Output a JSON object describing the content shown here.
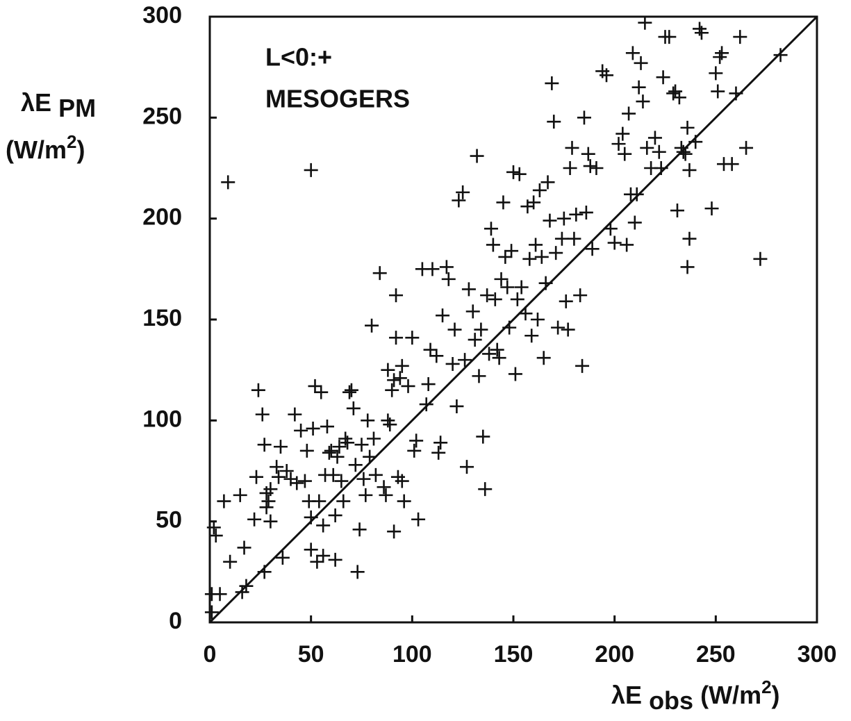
{
  "chart_data": {
    "type": "scatter",
    "annotation": [
      "L<0:+",
      "MESOGERS"
    ],
    "y_label": {
      "symbol": "λE",
      "subscript": "PM",
      "unit": "(W/m",
      "unit_power": "2",
      "unit_close": ")"
    },
    "x_label": {
      "symbol": "λE",
      "subscript": "obs",
      "unit": "(W/m",
      "unit_power": "2",
      "unit_close": ")"
    },
    "xlim": [
      0,
      300
    ],
    "ylim": [
      0,
      300
    ],
    "xticks": [
      0,
      50,
      100,
      150,
      200,
      250,
      300
    ],
    "yticks": [
      0,
      50,
      100,
      150,
      200,
      250,
      300
    ],
    "marker": "+",
    "color": "#111111",
    "x": [
      2,
      3,
      1,
      1,
      5,
      7,
      10,
      9,
      50,
      17,
      16,
      18,
      22,
      15,
      23,
      24,
      26,
      27,
      28,
      28,
      29,
      30,
      30,
      27,
      33,
      34,
      35,
      36,
      38,
      40,
      42,
      43,
      45,
      47,
      48,
      49,
      50,
      50,
      51,
      52,
      53,
      54,
      55,
      56,
      56,
      57,
      58,
      59,
      60,
      61,
      62,
      62,
      63,
      64,
      65,
      66,
      67,
      68,
      69,
      70,
      71,
      72,
      73,
      74,
      75,
      76,
      77,
      78,
      79,
      80,
      81,
      82,
      84,
      86,
      87,
      88,
      88,
      89,
      90,
      91,
      91,
      92,
      92,
      93,
      94,
      95,
      95,
      96,
      98,
      100,
      101,
      102,
      103,
      105,
      107,
      108,
      109,
      110,
      112,
      113,
      114,
      115,
      117,
      118,
      120,
      121,
      122,
      123,
      125,
      126,
      127,
      128,
      130,
      131,
      132,
      133,
      134,
      135,
      136,
      137,
      138,
      139,
      140,
      141,
      142,
      143,
      144,
      145,
      146,
      147,
      148,
      149,
      150,
      151,
      152,
      153,
      154,
      156,
      157,
      158,
      159,
      160,
      161,
      162,
      163,
      164,
      165,
      166,
      167,
      168,
      169,
      170,
      171,
      172,
      174,
      175,
      176,
      177,
      178,
      179,
      180,
      181,
      183,
      184,
      185,
      186,
      187,
      188,
      189,
      191,
      194,
      196,
      198,
      200,
      202,
      204,
      205,
      206,
      207,
      208,
      209,
      210,
      211,
      212,
      213,
      214,
      215,
      216,
      218,
      220,
      222,
      223,
      224,
      225,
      227,
      229,
      230,
      231,
      232,
      233,
      234,
      235,
      236,
      237,
      236,
      237,
      240,
      242,
      243,
      248,
      250,
      251,
      252,
      253,
      254,
      258,
      260,
      262,
      265,
      272,
      282
    ],
    "values": [
      47,
      43,
      14,
      5,
      14,
      60,
      30,
      218,
      224,
      37,
      15,
      18,
      51,
      63,
      72,
      115,
      103,
      88,
      64,
      57,
      60,
      66,
      50,
      25,
      77,
      72,
      87,
      32,
      75,
      71,
      103,
      69,
      95,
      70,
      85,
      60,
      36,
      52,
      96,
      117,
      30,
      60,
      114,
      48,
      33,
      73,
      97,
      84,
      85,
      73,
      53,
      31,
      82,
      87,
      70,
      60,
      91,
      89,
      114,
      115,
      106,
      78,
      25,
      46,
      88,
      71,
      63,
      100,
      82,
      147,
      91,
      73,
      173,
      67,
      63,
      100,
      125,
      98,
      115,
      120,
      45,
      162,
      141,
      72,
      121,
      127,
      70,
      60,
      117,
      141,
      85,
      90,
      51,
      175,
      108,
      118,
      135,
      175,
      132,
      84,
      89,
      152,
      176,
      170,
      128,
      145,
      107,
      209,
      213,
      130,
      77,
      165,
      154,
      140,
      231,
      122,
      145,
      92,
      66,
      162,
      133,
      195,
      187,
      160,
      135,
      131,
      170,
      208,
      181,
      166,
      146,
      184,
      223,
      123,
      160,
      222,
      166,
      153,
      206,
      180,
      142,
      208,
      187,
      150,
      214,
      181,
      131,
      168,
      218,
      199,
      267,
      248,
      183,
      146,
      190,
      200,
      159,
      145,
      225,
      235,
      190,
      202,
      162,
      127,
      250,
      203,
      232,
      226,
      185,
      225,
      273,
      271,
      195,
      188,
      237,
      242,
      232,
      187,
      252,
      212,
      282,
      198,
      212,
      265,
      277,
      258,
      297,
      235,
      225,
      240,
      233,
      225,
      270,
      290,
      290,
      262,
      263,
      204,
      260,
      235,
      233,
      232,
      176,
      190,
      245,
      224,
      238,
      294,
      292,
      205,
      272,
      263,
      280,
      282,
      227,
      227,
      262,
      290,
      235,
      180,
      281
    ]
  }
}
